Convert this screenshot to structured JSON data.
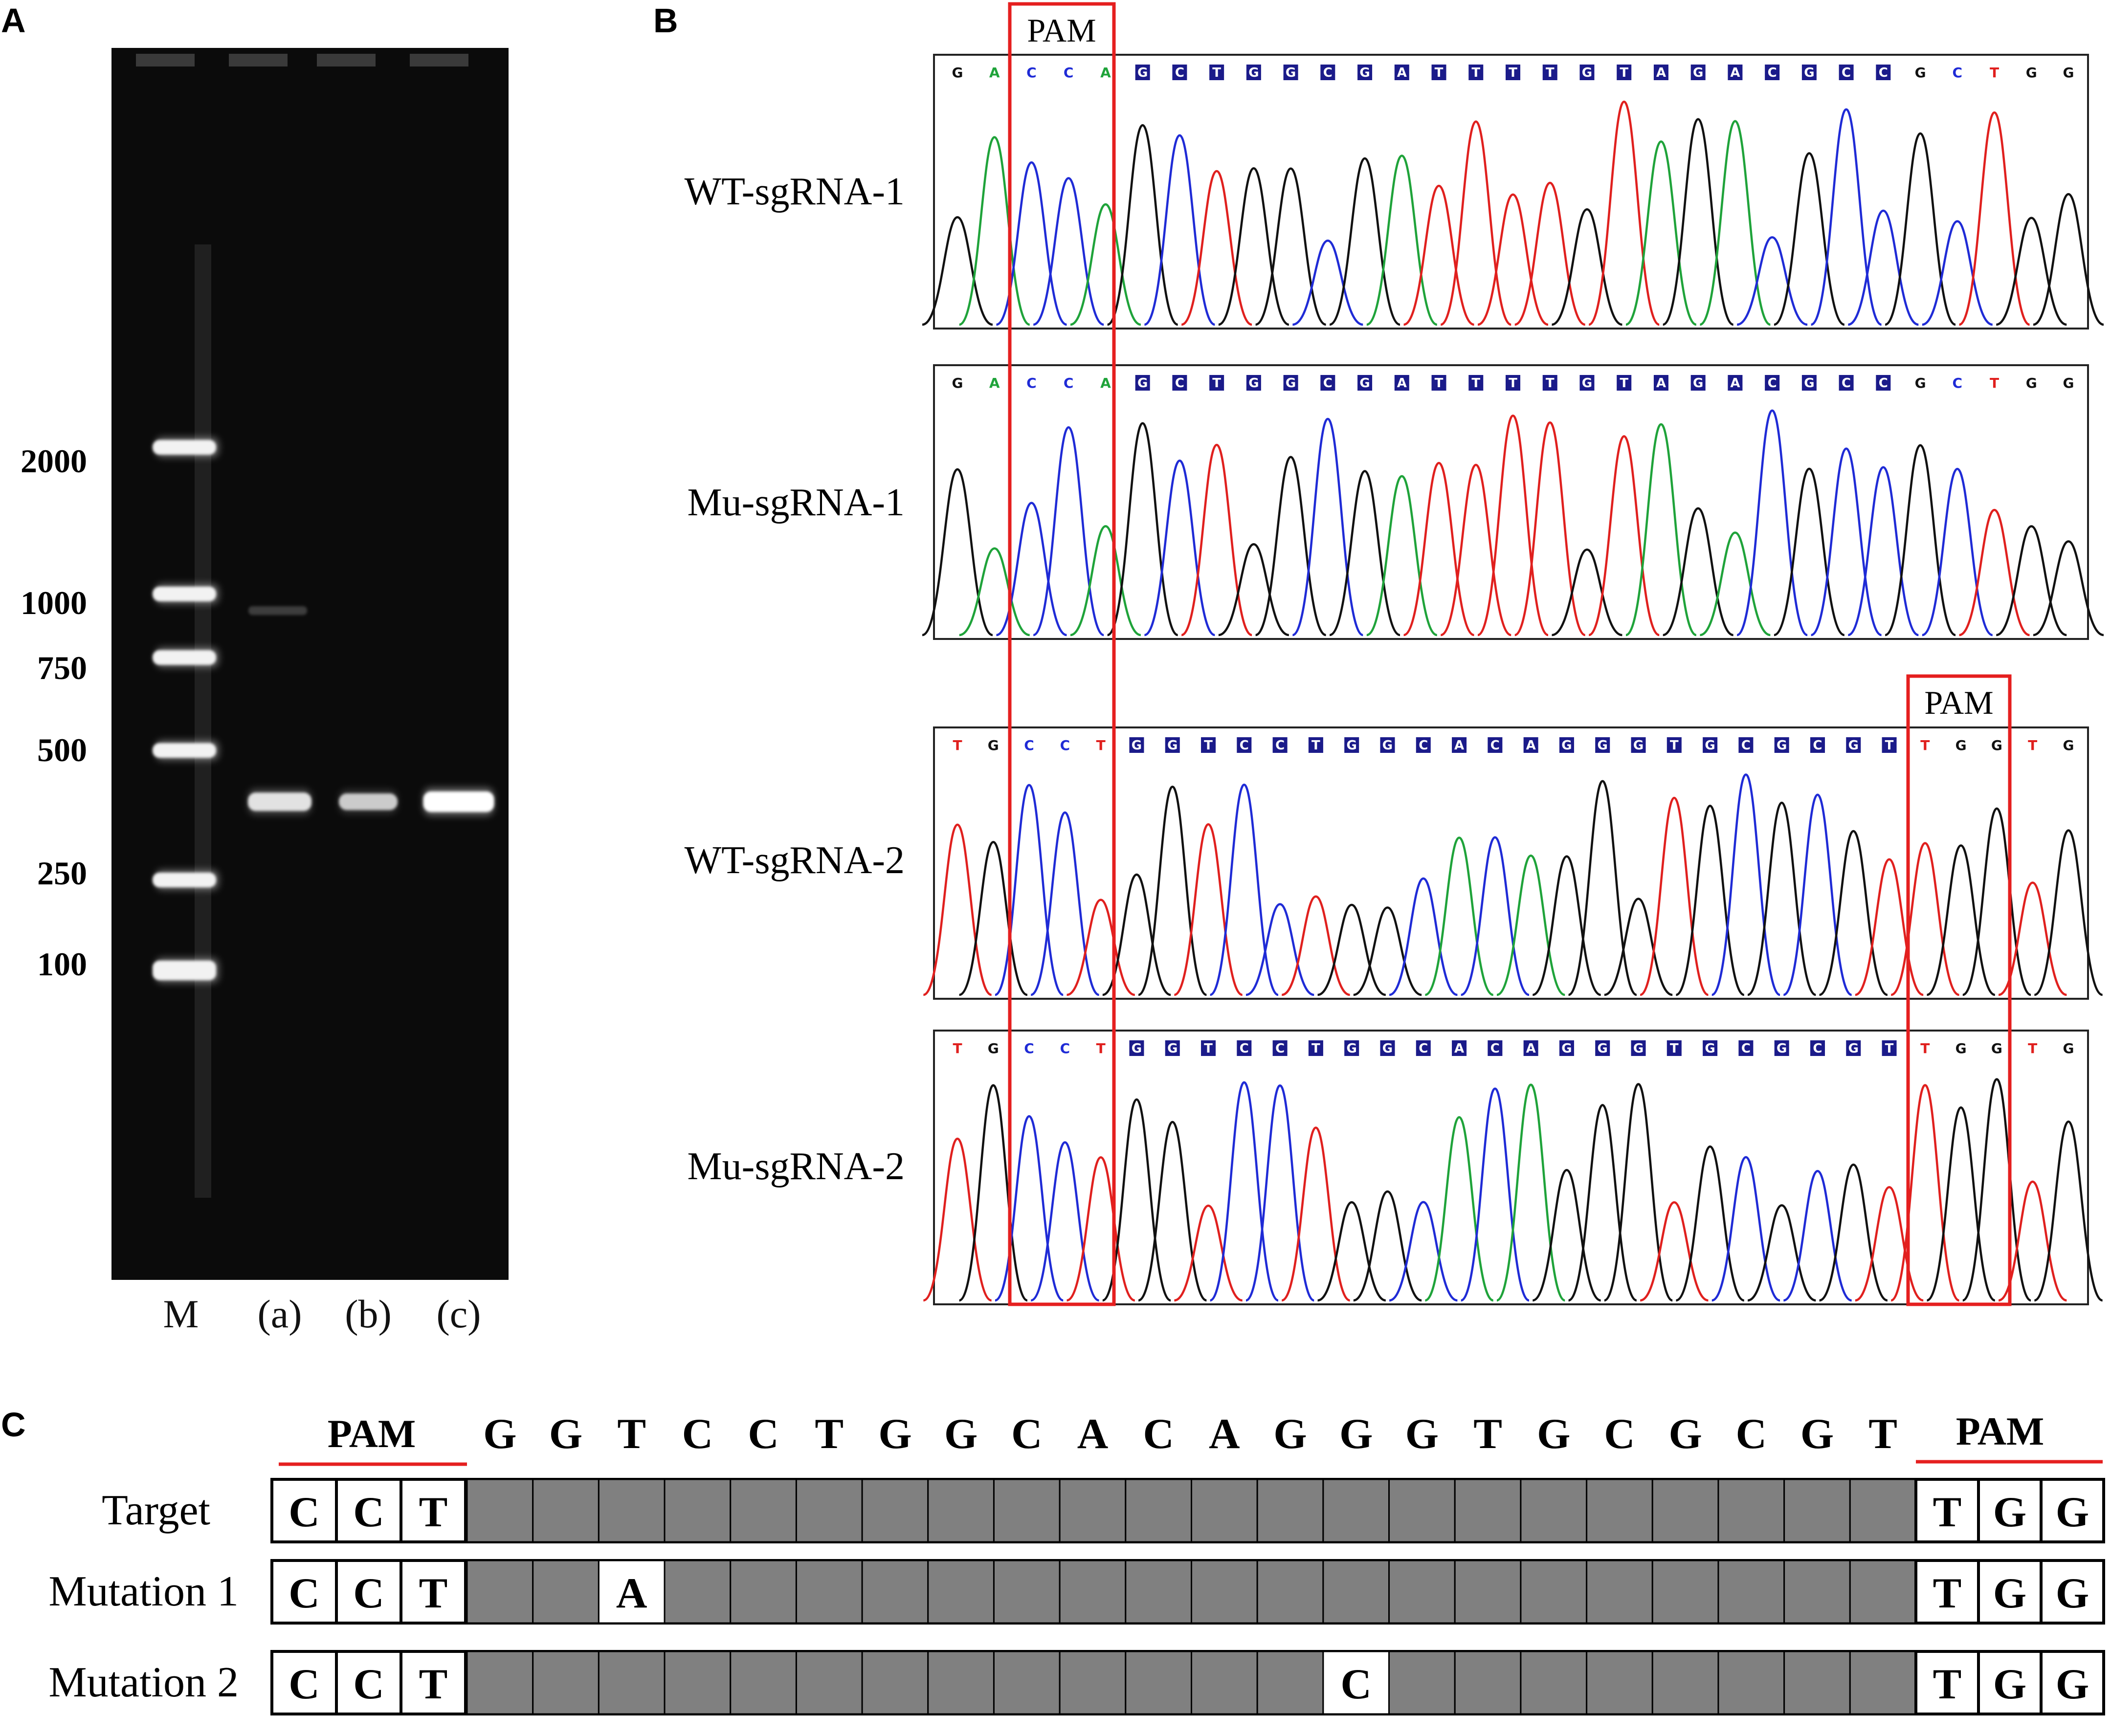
{
  "panel_labels": {
    "a": "A",
    "b": "B",
    "c": "C"
  },
  "gel": {
    "marker_sizes": [
      "2000",
      "1000",
      "750",
      "500",
      "250",
      "100"
    ],
    "lanes": [
      "M",
      "(a)",
      "(b)",
      "(c)"
    ],
    "sample_bands": [
      {
        "lane": "(a)",
        "size_bp": 380,
        "intensity": 0.75
      },
      {
        "lane": "(b)",
        "size_bp": 380,
        "intensity": 0.55
      },
      {
        "lane": "(c)",
        "size_bp": 380,
        "intensity": 1.0
      }
    ]
  },
  "chromatograms": {
    "pam_label": "PAM",
    "tracks": [
      {
        "name": "WT-sgRNA-1",
        "pre": "GACCA",
        "target": "GCTGGCGATTTTGTAGACGCC",
        "post": "GCTGG"
      },
      {
        "name": "Mu-sgRNA-1",
        "pre": "GACCA",
        "target": "GCTGGCGATTTTGTAGACGCC",
        "post": "GCTGG"
      },
      {
        "name": "WT-sgRNA-2",
        "pre": "TGCCT",
        "target": "GGTCCTGGCACAGGGTGCGCGT",
        "post": "TGGTG"
      },
      {
        "name": "Mu-sgRNA-2",
        "pre": "TGCCT",
        "target": "GGTCCTGGCACAGGGTGCGCGT",
        "post": "TGGTG"
      }
    ],
    "base_colors": {
      "A": "#1fa33a",
      "C": "#1f2bd6",
      "G": "#111111",
      "T": "#e0201e"
    },
    "highlight_color": "#e51f1f"
  },
  "alignment": {
    "pam_left": "PAM",
    "pam_right": "PAM",
    "sequence": [
      "G",
      "G",
      "T",
      "C",
      "C",
      "T",
      "G",
      "G",
      "C",
      "A",
      "C",
      "A",
      "G",
      "G",
      "G",
      "T",
      "G",
      "C",
      "G",
      "C",
      "G",
      "T"
    ],
    "rows": [
      {
        "label": "Target",
        "left": [
          "C",
          "C",
          "T"
        ],
        "right": [
          "T",
          "G",
          "G"
        ],
        "mutations": []
      },
      {
        "label": "Mutation 1",
        "left": [
          "C",
          "C",
          "T"
        ],
        "right": [
          "T",
          "G",
          "G"
        ],
        "mutations": [
          {
            "index": 2,
            "base": "A"
          }
        ]
      },
      {
        "label": "Mutation 2",
        "left": [
          "C",
          "C",
          "T"
        ],
        "right": [
          "T",
          "G",
          "G"
        ],
        "mutations": [
          {
            "index": 13,
            "base": "C"
          }
        ]
      }
    ]
  }
}
